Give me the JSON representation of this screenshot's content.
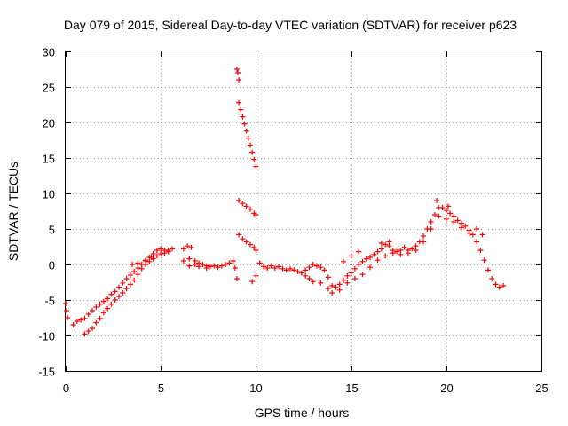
{
  "chart_data": {
    "type": "scatter",
    "title": "Day 079 of 2015, Sidereal Day-to-day VTEC variation (SDTVAR) for receiver p623",
    "xlabel": "GPS time / hours",
    "ylabel": "SDTVAR / TECUs",
    "xlim": [
      0,
      25
    ],
    "ylim": [
      -15,
      30
    ],
    "xticks": [
      0,
      5,
      10,
      15,
      20,
      25
    ],
    "yticks": [
      -15,
      -10,
      -5,
      0,
      5,
      10,
      15,
      20,
      25,
      30
    ],
    "xtick_labels": [
      "0",
      "5",
      "10",
      "15",
      "20",
      "25"
    ],
    "ytick_labels": [
      "-15",
      "-10",
      "-5",
      "0",
      "5",
      "10",
      "15",
      "20",
      "25",
      "30"
    ],
    "grid": true,
    "marker": "+",
    "color": "#ff0000",
    "series": [
      {
        "name": "SDTVAR",
        "points": [
          [
            0.0,
            -5.5
          ],
          [
            0.05,
            -6.5
          ],
          [
            0.1,
            -7.5
          ],
          [
            0.4,
            -8.5
          ],
          [
            0.6,
            -8.0
          ],
          [
            0.8,
            -7.8
          ],
          [
            1.0,
            -7.6
          ],
          [
            1.2,
            -7.0
          ],
          [
            1.4,
            -6.5
          ],
          [
            1.6,
            -6.0
          ],
          [
            1.8,
            -5.6
          ],
          [
            2.0,
            -5.2
          ],
          [
            2.2,
            -4.8
          ],
          [
            2.4,
            -4.2
          ],
          [
            2.6,
            -3.8
          ],
          [
            2.8,
            -3.2
          ],
          [
            3.0,
            -2.6
          ],
          [
            3.2,
            -2.0
          ],
          [
            3.4,
            -1.5
          ],
          [
            3.6,
            -1.0
          ],
          [
            3.8,
            -0.5
          ],
          [
            4.0,
            0.0
          ],
          [
            4.2,
            0.5
          ],
          [
            4.4,
            1.0
          ],
          [
            4.6,
            1.5
          ],
          [
            4.8,
            2.0
          ],
          [
            5.0,
            2.2
          ],
          [
            5.2,
            2.0
          ],
          [
            5.4,
            2.0
          ],
          [
            5.6,
            2.2
          ],
          [
            1.0,
            -9.8
          ],
          [
            1.2,
            -9.4
          ],
          [
            1.4,
            -9.0
          ],
          [
            1.6,
            -8.2
          ],
          [
            1.8,
            -7.6
          ],
          [
            2.0,
            -6.8
          ],
          [
            2.2,
            -6.2
          ],
          [
            2.4,
            -5.6
          ],
          [
            2.6,
            -5.0
          ],
          [
            2.8,
            -4.5
          ],
          [
            3.0,
            -4.0
          ],
          [
            3.2,
            -3.4
          ],
          [
            3.4,
            -2.8
          ],
          [
            3.6,
            -2.2
          ],
          [
            3.8,
            -1.4
          ],
          [
            4.0,
            -0.6
          ],
          [
            4.2,
            0.0
          ],
          [
            4.4,
            0.4
          ],
          [
            4.6,
            0.8
          ],
          [
            4.8,
            1.2
          ],
          [
            5.0,
            1.5
          ],
          [
            5.2,
            1.6
          ],
          [
            5.4,
            1.8
          ],
          [
            3.5,
            0.0
          ],
          [
            3.8,
            0.2
          ],
          [
            4.2,
            0.6
          ],
          [
            4.5,
            1.0
          ],
          [
            6.2,
            2.2
          ],
          [
            6.4,
            2.6
          ],
          [
            6.6,
            2.4
          ],
          [
            6.2,
            0.5
          ],
          [
            6.5,
            0.8
          ],
          [
            6.8,
            0.5
          ],
          [
            7.0,
            0.2
          ],
          [
            7.2,
            0.0
          ],
          [
            7.4,
            -0.2
          ],
          [
            7.6,
            -0.3
          ],
          [
            7.8,
            -0.2
          ],
          [
            8.0,
            -0.4
          ],
          [
            8.2,
            -0.2
          ],
          [
            8.4,
            0.0
          ],
          [
            8.6,
            0.2
          ],
          [
            8.8,
            0.5
          ],
          [
            8.9,
            -0.5
          ],
          [
            6.5,
            -0.2
          ],
          [
            6.8,
            0.0
          ],
          [
            7.0,
            -0.3
          ],
          [
            7.4,
            -0.5
          ],
          [
            9.0,
            27.5
          ],
          [
            9.05,
            27.0
          ],
          [
            9.1,
            26.0
          ],
          [
            9.1,
            22.8
          ],
          [
            9.2,
            21.8
          ],
          [
            9.3,
            20.8
          ],
          [
            9.4,
            19.8
          ],
          [
            9.5,
            18.8
          ],
          [
            9.6,
            17.8
          ],
          [
            9.7,
            16.8
          ],
          [
            9.8,
            15.8
          ],
          [
            9.9,
            14.8
          ],
          [
            10.0,
            13.8
          ],
          [
            9.1,
            9.0
          ],
          [
            9.3,
            8.6
          ],
          [
            9.5,
            8.2
          ],
          [
            9.7,
            7.8
          ],
          [
            9.9,
            7.2
          ],
          [
            10.0,
            7.0
          ],
          [
            9.1,
            4.2
          ],
          [
            9.3,
            3.6
          ],
          [
            9.5,
            3.2
          ],
          [
            9.7,
            2.8
          ],
          [
            9.9,
            2.4
          ],
          [
            10.0,
            2.0
          ],
          [
            9.0,
            -2.0
          ],
          [
            9.8,
            -2.4
          ],
          [
            10.0,
            -1.6
          ],
          [
            10.2,
            0.2
          ],
          [
            10.4,
            -0.3
          ],
          [
            10.6,
            -0.5
          ],
          [
            10.8,
            -0.2
          ],
          [
            11.0,
            -0.5
          ],
          [
            11.2,
            -0.3
          ],
          [
            11.4,
            -0.6
          ],
          [
            11.6,
            -0.8
          ],
          [
            11.8,
            -0.6
          ],
          [
            12.0,
            -0.8
          ],
          [
            12.2,
            -1.0
          ],
          [
            12.4,
            -1.2
          ],
          [
            12.6,
            -0.8
          ],
          [
            12.8,
            -0.4
          ],
          [
            13.0,
            0.0
          ],
          [
            13.2,
            -0.2
          ],
          [
            13.4,
            -0.4
          ],
          [
            13.6,
            -0.8
          ],
          [
            13.8,
            -1.8
          ],
          [
            14.0,
            -3.0
          ],
          [
            14.2,
            -3.2
          ],
          [
            14.4,
            -2.8
          ],
          [
            14.6,
            -2.2
          ],
          [
            14.8,
            -1.6
          ],
          [
            15.0,
            -1.2
          ],
          [
            15.2,
            -0.6
          ],
          [
            15.4,
            0.0
          ],
          [
            15.6,
            0.4
          ],
          [
            15.8,
            0.8
          ],
          [
            16.0,
            1.0
          ],
          [
            16.2,
            1.4
          ],
          [
            16.4,
            1.8
          ],
          [
            16.6,
            2.2
          ],
          [
            16.8,
            2.8
          ],
          [
            17.0,
            2.6
          ],
          [
            17.2,
            2.0
          ],
          [
            17.4,
            1.8
          ],
          [
            17.6,
            2.0
          ],
          [
            17.8,
            2.4
          ],
          [
            18.0,
            2.0
          ],
          [
            18.2,
            2.2
          ],
          [
            18.4,
            2.6
          ],
          [
            18.6,
            3.2
          ],
          [
            18.8,
            4.0
          ],
          [
            19.0,
            5.0
          ],
          [
            19.2,
            6.0
          ],
          [
            19.4,
            7.0
          ],
          [
            19.6,
            8.0
          ],
          [
            19.8,
            8.0
          ],
          [
            20.0,
            7.6
          ],
          [
            20.2,
            7.2
          ],
          [
            20.4,
            6.8
          ],
          [
            20.6,
            6.2
          ],
          [
            20.8,
            5.8
          ],
          [
            21.0,
            5.4
          ],
          [
            21.2,
            4.8
          ],
          [
            21.4,
            4.2
          ],
          [
            21.6,
            3.2
          ],
          [
            21.8,
            2.0
          ],
          [
            22.0,
            0.6
          ],
          [
            22.2,
            -0.8
          ],
          [
            22.4,
            -2.0
          ],
          [
            22.6,
            -2.8
          ],
          [
            22.8,
            -3.2
          ],
          [
            23.0,
            -3.0
          ],
          [
            12.6,
            -1.6
          ],
          [
            12.8,
            -2.0
          ],
          [
            13.0,
            -2.4
          ],
          [
            13.4,
            -2.6
          ],
          [
            13.8,
            -3.4
          ],
          [
            14.0,
            -4.0
          ],
          [
            14.4,
            -3.6
          ],
          [
            14.8,
            -2.6
          ],
          [
            15.2,
            -2.0
          ],
          [
            15.6,
            -1.4
          ],
          [
            16.0,
            -0.4
          ],
          [
            16.4,
            0.6
          ],
          [
            16.8,
            1.2
          ],
          [
            17.2,
            1.6
          ],
          [
            17.6,
            1.4
          ],
          [
            18.0,
            1.6
          ],
          [
            18.4,
            2.0
          ],
          [
            18.8,
            3.2
          ],
          [
            19.2,
            5.0
          ],
          [
            19.6,
            6.8
          ],
          [
            20.0,
            6.4
          ],
          [
            20.4,
            6.0
          ],
          [
            20.8,
            5.2
          ],
          [
            21.2,
            4.4
          ],
          [
            14.6,
            0.4
          ],
          [
            15.0,
            1.2
          ],
          [
            15.4,
            1.8
          ],
          [
            16.6,
            3.0
          ],
          [
            17.0,
            3.2
          ],
          [
            19.5,
            9.0
          ],
          [
            20.1,
            8.2
          ],
          [
            21.6,
            5.0
          ],
          [
            21.9,
            4.2
          ]
        ]
      }
    ]
  }
}
